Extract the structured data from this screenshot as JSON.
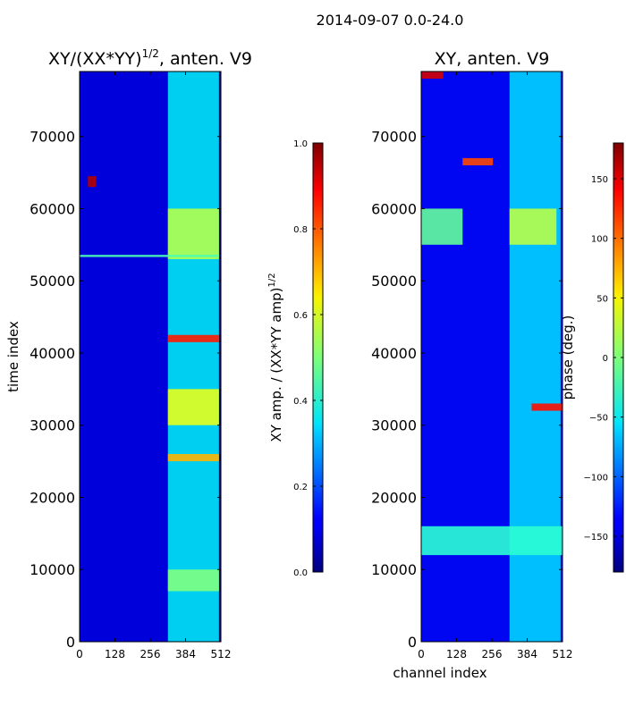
{
  "figure": {
    "suptitle": "2014-09-07 0.0-24.0"
  },
  "chart_data": [
    {
      "type": "heatmap",
      "title_main": "XY/(XX*YY)",
      "title_sup": "1/2",
      "title_suffix": ", anten. V9",
      "xlabel": "",
      "ylabel": "time index",
      "xlim": [
        0,
        512
      ],
      "ylim": [
        0,
        79000
      ],
      "xticks": [
        {
          "value": 0,
          "label": "0"
        },
        {
          "value": 128,
          "label": "128"
        },
        {
          "value": 256,
          "label": "256"
        },
        {
          "value": 384,
          "label": "384"
        },
        {
          "value": 512,
          "label": "512"
        }
      ],
      "yticks": [
        {
          "value": 0,
          "label": "0"
        },
        {
          "value": 10000,
          "label": "10000"
        },
        {
          "value": 20000,
          "label": "20000"
        },
        {
          "value": 30000,
          "label": "30000"
        },
        {
          "value": 40000,
          "label": "40000"
        },
        {
          "value": 50000,
          "label": "50000"
        },
        {
          "value": 60000,
          "label": "60000"
        },
        {
          "value": 70000,
          "label": "70000"
        }
      ],
      "colormap": "jet",
      "colorbar": {
        "label_main": "XY amp. / (XX*YY amp)",
        "label_sup": "1/2",
        "range": [
          0.0,
          1.0
        ],
        "ticks": [
          {
            "value": 0.0,
            "label": "0.0"
          },
          {
            "value": 0.2,
            "label": "0.2"
          },
          {
            "value": 0.4,
            "label": "0.4"
          },
          {
            "value": 0.6,
            "label": "0.6"
          },
          {
            "value": 0.8,
            "label": "0.8"
          },
          {
            "value": 1.0,
            "label": "1.0"
          }
        ]
      },
      "bands": [
        {
          "x": [
            0,
            320
          ],
          "y": [
            0,
            79000
          ],
          "value": 0.1
        },
        {
          "x": [
            320,
            505
          ],
          "y": [
            0,
            79000
          ],
          "value": 0.35
        },
        {
          "x": [
            320,
            505
          ],
          "y": [
            7000,
            10000
          ],
          "value": 0.5
        },
        {
          "x": [
            320,
            505
          ],
          "y": [
            25000,
            26000
          ],
          "value": 0.7
        },
        {
          "x": [
            320,
            505
          ],
          "y": [
            30000,
            35000
          ],
          "value": 0.6
        },
        {
          "x": [
            320,
            505
          ],
          "y": [
            41500,
            42500
          ],
          "value": 0.85
        },
        {
          "x": [
            320,
            505
          ],
          "y": [
            53000,
            60000
          ],
          "value": 0.55
        },
        {
          "x": [
            0,
            505
          ],
          "y": [
            53300,
            53600
          ],
          "value": 0.45
        },
        {
          "x": [
            30,
            60
          ],
          "y": [
            63000,
            64500
          ],
          "value": 0.95
        }
      ]
    },
    {
      "type": "heatmap",
      "title_main": "XY, anten. V9",
      "xlabel": "channel index",
      "ylabel": "",
      "xlim": [
        0,
        512
      ],
      "ylim": [
        0,
        79000
      ],
      "xticks": [
        {
          "value": 0,
          "label": "0"
        },
        {
          "value": 128,
          "label": "128"
        },
        {
          "value": 256,
          "label": "256"
        },
        {
          "value": 384,
          "label": "384"
        },
        {
          "value": 512,
          "label": "512"
        }
      ],
      "yticks": [
        {
          "value": 0,
          "label": "0"
        },
        {
          "value": 10000,
          "label": "10000"
        },
        {
          "value": 20000,
          "label": "20000"
        },
        {
          "value": 30000,
          "label": "30000"
        },
        {
          "value": 40000,
          "label": "40000"
        },
        {
          "value": 50000,
          "label": "50000"
        },
        {
          "value": 60000,
          "label": "60000"
        },
        {
          "value": 70000,
          "label": "70000"
        }
      ],
      "colormap": "jet",
      "colorbar": {
        "label": "phase (deg.)",
        "range": [
          -180,
          180
        ],
        "ticks": [
          {
            "value": -150,
            "label": "−150"
          },
          {
            "value": -100,
            "label": "−100"
          },
          {
            "value": -50,
            "label": "−50"
          },
          {
            "value": 0,
            "label": "0"
          },
          {
            "value": 50,
            "label": "50"
          },
          {
            "value": 100,
            "label": "100"
          },
          {
            "value": 150,
            "label": "150"
          }
        ]
      },
      "bands": [
        {
          "x": [
            0,
            512
          ],
          "y": [
            0,
            79000
          ],
          "value": -140
        },
        {
          "x": [
            320,
            505
          ],
          "y": [
            0,
            79000
          ],
          "value": -60
        },
        {
          "x": [
            0,
            512
          ],
          "y": [
            12000,
            16000
          ],
          "value": -30
        },
        {
          "x": [
            0,
            150
          ],
          "y": [
            55000,
            60000
          ],
          "value": -10
        },
        {
          "x": [
            320,
            490
          ],
          "y": [
            55000,
            60000
          ],
          "value": 20
        },
        {
          "x": [
            150,
            260
          ],
          "y": [
            66000,
            67000
          ],
          "value": 110
        },
        {
          "x": [
            400,
            512
          ],
          "y": [
            32000,
            33000
          ],
          "value": 130
        },
        {
          "x": [
            0,
            80
          ],
          "y": [
            78000,
            79000
          ],
          "value": 150
        }
      ]
    }
  ]
}
